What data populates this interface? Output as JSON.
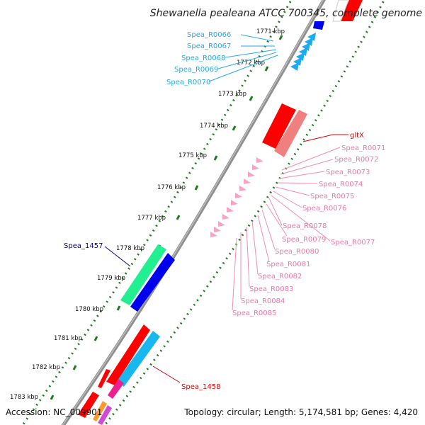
{
  "title": "Shewanella pealeana ATCC 700345, complete genome",
  "footer": {
    "accession": "Accession: NC_009901",
    "summary": "Topology: circular; Length: 5,174,581 bp; Genes: 4,420"
  },
  "ticks": [
    "1771 kbp",
    "1772 kbp",
    "1773 kbp",
    "1774 kbp",
    "1775 kbp",
    "1776 kbp",
    "1777 kbp",
    "1778 kbp",
    "1779 kbp",
    "1780 kbp",
    "1781 kbp",
    "1782 kbp",
    "1783 kbp"
  ],
  "labels": {
    "cyan": [
      "Spea_R0066",
      "Spea_R0067",
      "Spea_R0068",
      "Spea_R0069",
      "Spea_R0070"
    ],
    "pink": [
      "Spea_R0071",
      "Spea_R0072",
      "Spea_R0073",
      "Spea_R0074",
      "Spea_R0075",
      "Spea_R0076",
      "Spea_R0078",
      "Spea_R0079",
      "Spea_R0077",
      "Spea_R0080",
      "Spea_R0081",
      "Spea_R0082",
      "Spea_R0083",
      "Spea_R0084",
      "Spea_R0085"
    ],
    "gltX": "gltX",
    "spea1457": "Spea_1457",
    "spea1458": "Spea_1458"
  },
  "colors": {
    "cyan_label": "#29a9e6",
    "pink_label": "#e87aa8",
    "red_label": "#dd0000",
    "blue_label": "#000099",
    "axis": "#909090",
    "tick_dots": "#1e7a1e"
  }
}
